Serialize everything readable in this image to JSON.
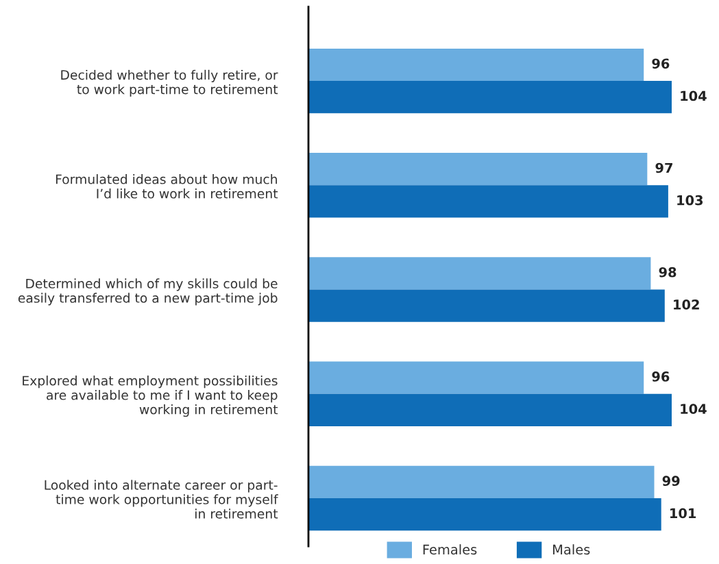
{
  "chart_data": {
    "type": "bar",
    "orientation": "horizontal",
    "categories": [
      "Decided whether to fully retire, or\nto work part-time to retirement",
      "Formulated ideas about how much\nI’d like to work in retirement",
      "Determined which of my skills could be\neasily transferred to a new part-time job",
      "Explored what employment possibilities\nare available to me if I want to keep\nworking in retirement",
      "Looked into alternate career or part-\ntime work opportunities for myself\nin retirement"
    ],
    "series": [
      {
        "name": "Females",
        "color": "#6aade0",
        "values": [
          96,
          97,
          98,
          96,
          99
        ]
      },
      {
        "name": "Males",
        "color": "#0f6db7",
        "values": [
          104,
          103,
          102,
          104,
          101
        ]
      }
    ],
    "tick_labels": "y",
    "data_labels": true,
    "legend": "bottom",
    "grid": false
  }
}
